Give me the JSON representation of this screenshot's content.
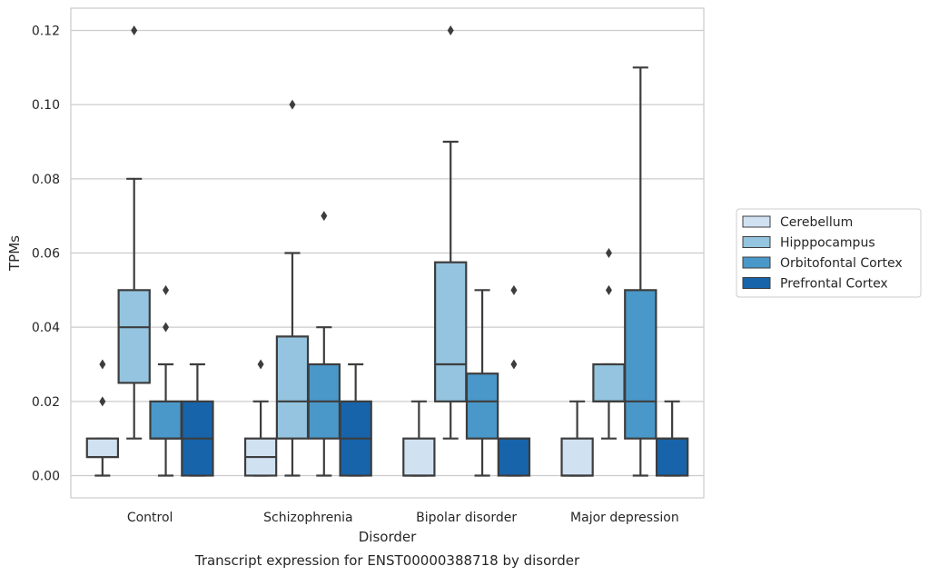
{
  "chart_data": {
    "type": "boxplot",
    "caption": "Transcript expression for ENST00000388718 by disorder",
    "xlabel": "Disorder",
    "ylabel": "TPMs",
    "ylim": [
      -0.006,
      0.126
    ],
    "yticks": [
      0.0,
      0.02,
      0.04,
      0.06,
      0.08,
      0.1,
      0.12
    ],
    "ytick_labels": [
      "0.00",
      "0.02",
      "0.04",
      "0.06",
      "0.08",
      "0.10",
      "0.12"
    ],
    "grid": "horizontal",
    "legend_position": "right",
    "categories": [
      "Control",
      "Schizophrenia",
      "Bipolar disorder",
      "Major depression"
    ],
    "series": [
      {
        "name": "Cerebellum",
        "color": "#d0e1f2",
        "boxes": [
          {
            "whislo": 0.0,
            "q1": 0.005,
            "med": 0.005,
            "q3": 0.01,
            "whishi": 0.01,
            "fliers": [
              0.02,
              0.03
            ]
          },
          {
            "whislo": 0.0,
            "q1": 0.0,
            "med": 0.005,
            "q3": 0.01,
            "whishi": 0.02,
            "fliers": [
              0.03
            ]
          },
          {
            "whislo": 0.0,
            "q1": 0.0,
            "med": 0.0,
            "q3": 0.01,
            "whishi": 0.02,
            "fliers": []
          },
          {
            "whislo": 0.0,
            "q1": 0.0,
            "med": 0.0,
            "q3": 0.01,
            "whishi": 0.02,
            "fliers": []
          }
        ]
      },
      {
        "name": "Hipppocampus",
        "color": "#94c4df",
        "boxes": [
          {
            "whislo": 0.01,
            "q1": 0.025,
            "med": 0.04,
            "q3": 0.05,
            "whishi": 0.08,
            "fliers": [
              0.12
            ]
          },
          {
            "whislo": 0.0,
            "q1": 0.01,
            "med": 0.02,
            "q3": 0.0375,
            "whishi": 0.06,
            "fliers": [
              0.1
            ]
          },
          {
            "whislo": 0.01,
            "q1": 0.02,
            "med": 0.03,
            "q3": 0.0575,
            "whishi": 0.09,
            "fliers": [
              0.12
            ]
          },
          {
            "whislo": 0.01,
            "q1": 0.02,
            "med": 0.02,
            "q3": 0.03,
            "whishi": 0.03,
            "fliers": [
              0.05,
              0.06
            ]
          }
        ]
      },
      {
        "name": "Orbitofontal Cortex",
        "color": "#4a98c9",
        "boxes": [
          {
            "whislo": 0.0,
            "q1": 0.01,
            "med": 0.01,
            "q3": 0.02,
            "whishi": 0.03,
            "fliers": [
              0.04,
              0.05
            ]
          },
          {
            "whislo": 0.0,
            "q1": 0.01,
            "med": 0.02,
            "q3": 0.03,
            "whishi": 0.04,
            "fliers": [
              0.07
            ]
          },
          {
            "whislo": 0.0,
            "q1": 0.01,
            "med": 0.02,
            "q3": 0.0275,
            "whishi": 0.05,
            "fliers": []
          },
          {
            "whislo": 0.0,
            "q1": 0.01,
            "med": 0.02,
            "q3": 0.05,
            "whishi": 0.11,
            "fliers": []
          }
        ]
      },
      {
        "name": "Prefrontal Cortex",
        "color": "#1764ab",
        "boxes": [
          {
            "whislo": 0.0,
            "q1": 0.0,
            "med": 0.01,
            "q3": 0.02,
            "whishi": 0.03,
            "fliers": []
          },
          {
            "whislo": 0.0,
            "q1": 0.0,
            "med": 0.01,
            "q3": 0.02,
            "whishi": 0.03,
            "fliers": []
          },
          {
            "whislo": 0.0,
            "q1": 0.0,
            "med": 0.01,
            "q3": 0.01,
            "whishi": 0.01,
            "fliers": [
              0.03,
              0.05
            ]
          },
          {
            "whislo": 0.0,
            "q1": 0.0,
            "med": 0.01,
            "q3": 0.01,
            "whishi": 0.02,
            "fliers": []
          }
        ]
      }
    ]
  }
}
